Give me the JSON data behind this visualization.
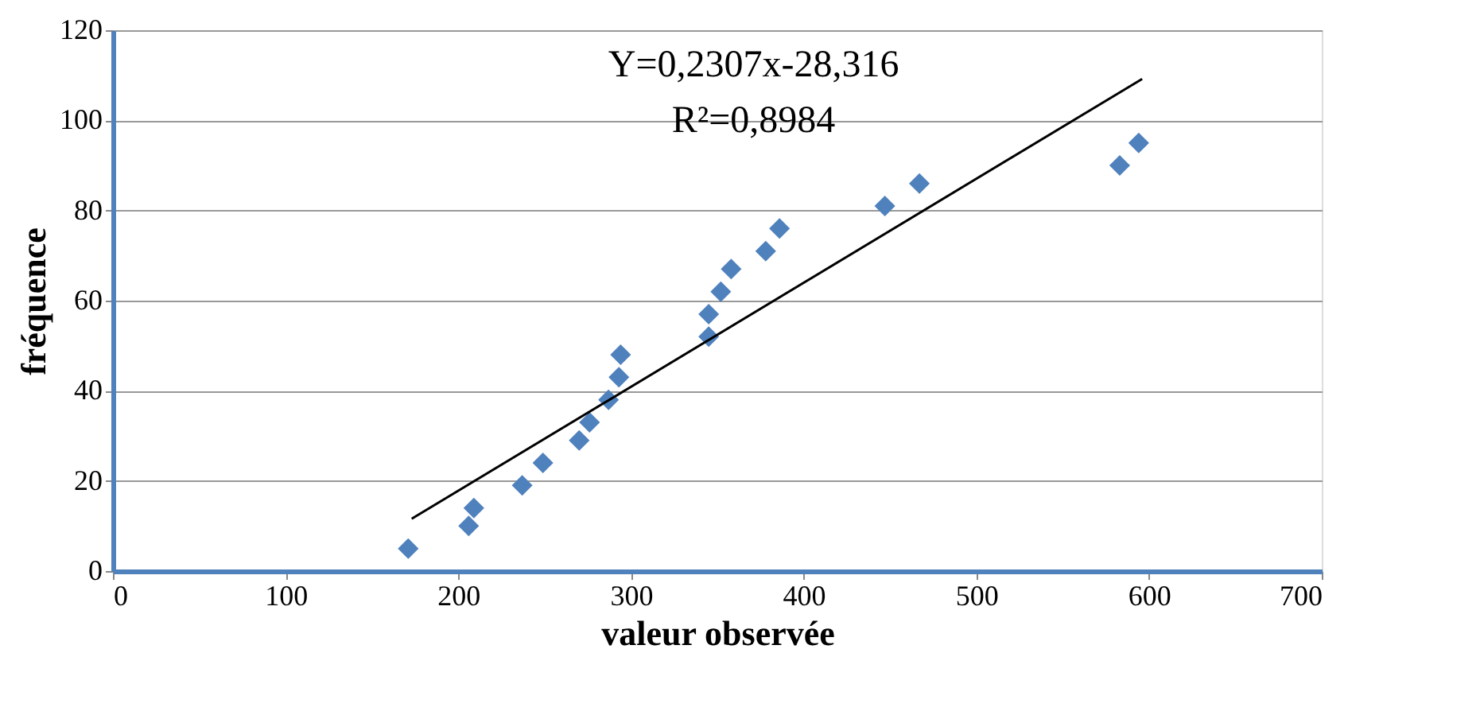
{
  "chart_data": {
    "type": "scatter",
    "xlabel": "valeur observée",
    "ylabel": "fréquence",
    "xlim": [
      0,
      700
    ],
    "ylim": [
      0,
      120
    ],
    "xticks": [
      0,
      100,
      200,
      300,
      400,
      500,
      600,
      700
    ],
    "yticks": [
      0,
      20,
      40,
      60,
      80,
      100,
      120
    ],
    "grid": "y",
    "annotations": [
      "Y=0,2307x-28,316",
      "R²=0,8984"
    ],
    "series": [
      {
        "color": "#4f81bd",
        "marker": "diamond",
        "x": [
          171,
          206,
          209,
          237,
          249,
          270,
          276,
          287,
          293,
          294,
          345,
          345,
          352,
          358,
          378,
          386,
          447,
          467,
          583,
          594
        ],
        "values": [
          5,
          10,
          14,
          19,
          24,
          29,
          33,
          38,
          43,
          48,
          52,
          57,
          62,
          67,
          71,
          76,
          81,
          86,
          90,
          95
        ]
      },
      {
        "type": "line",
        "color": "#000000",
        "marker": "none",
        "line_style": "solid",
        "x": [
          173,
          596
        ],
        "values": [
          11.6,
          109.2
        ]
      }
    ]
  }
}
